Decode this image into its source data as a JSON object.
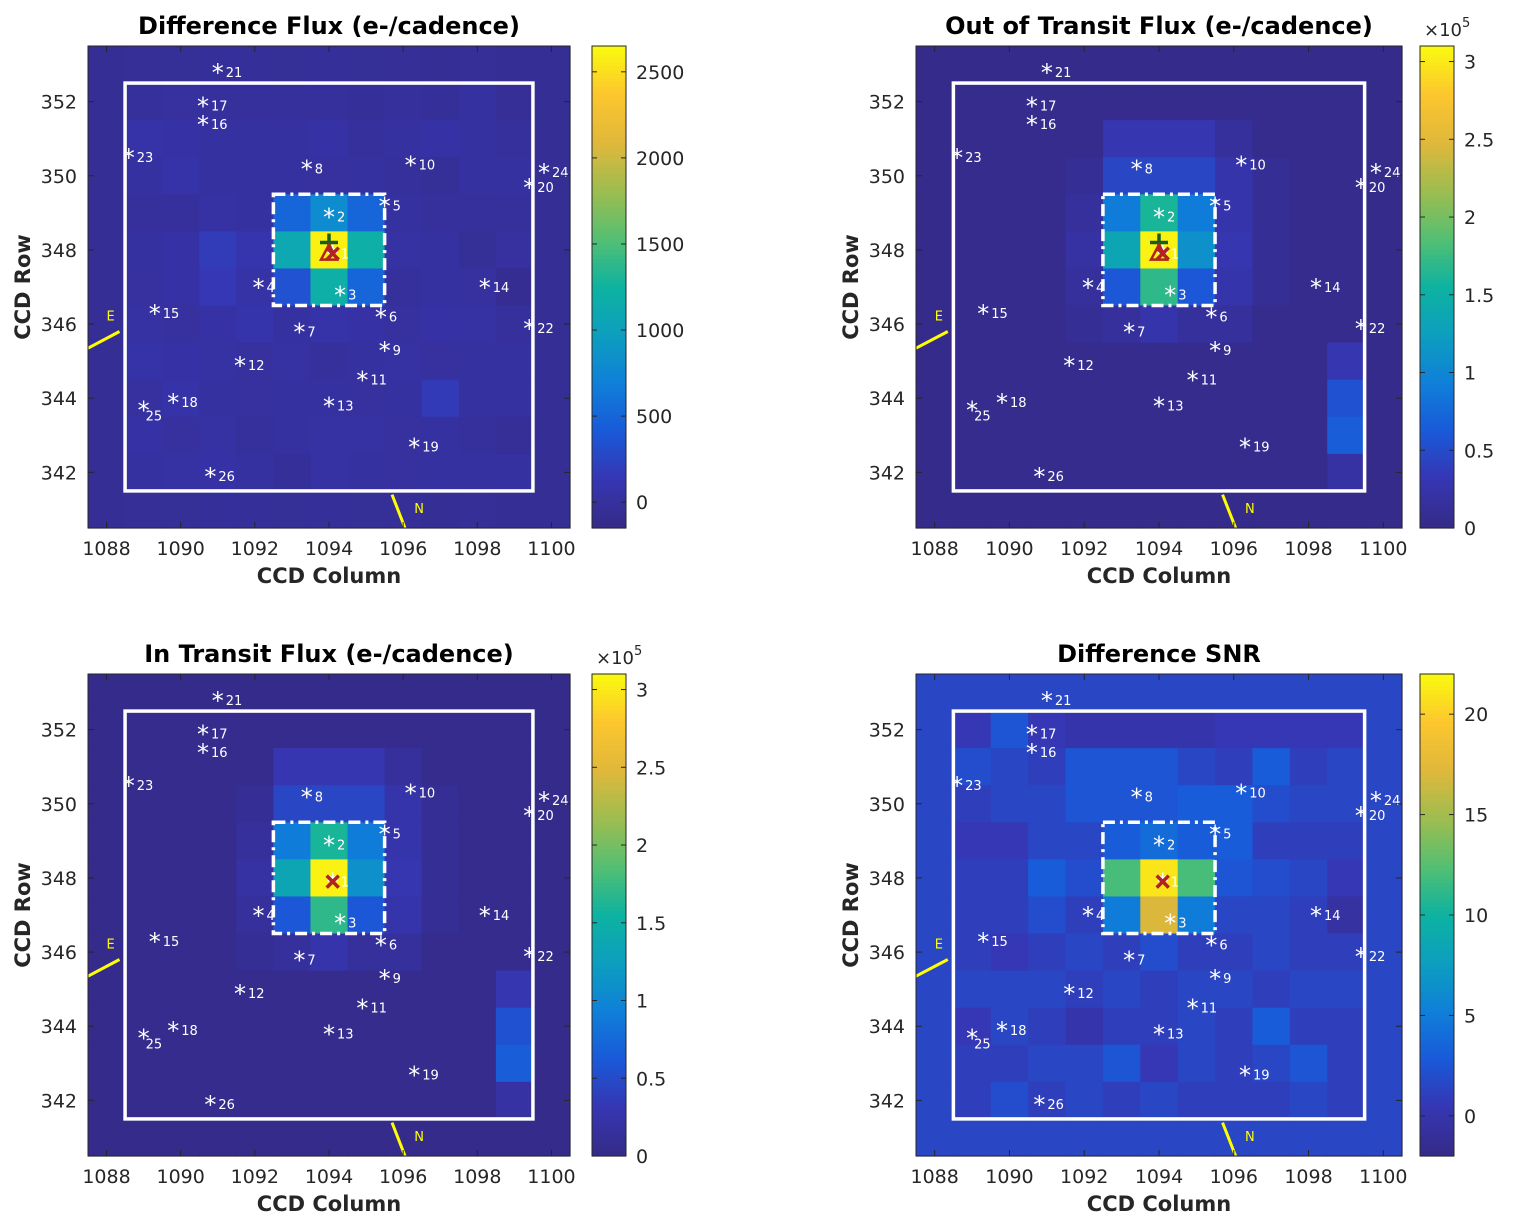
{
  "chart_data": [
    {
      "type": "heatmap",
      "title": "Difference Flux (e-/cadence)",
      "xlabel": "CCD Column",
      "ylabel": "CCD Row",
      "xlim": [
        1087.5,
        1100.5
      ],
      "ylim": [
        340.5,
        353.5
      ],
      "xticks": [
        1088,
        1090,
        1092,
        1094,
        1096,
        1098,
        1100
      ],
      "yticks": [
        342,
        344,
        346,
        348,
        350,
        352
      ],
      "clim": [
        -150,
        2650
      ],
      "colorbar_ticks": [
        0,
        500,
        1000,
        1500,
        2000,
        2500
      ],
      "colorbar_exponent": "",
      "pixels": [
        [
          -60,
          -50,
          -40,
          -30,
          -30,
          -40,
          -30,
          -40,
          -50,
          -60,
          -50,
          -60,
          -60
        ],
        [
          -60,
          -20,
          0,
          -10,
          -20,
          -10,
          -20,
          -30,
          -10,
          -30,
          20,
          -50,
          -60
        ],
        [
          -60,
          60,
          40,
          20,
          10,
          10,
          40,
          -10,
          10,
          40,
          10,
          -10,
          -60
        ],
        [
          -60,
          20,
          70,
          10,
          20,
          10,
          0,
          10,
          -20,
          -40,
          10,
          10,
          -60
        ],
        [
          -60,
          -10,
          -10,
          30,
          20,
          500,
          800,
          500,
          10,
          -10,
          -20,
          -10,
          -60
        ],
        [
          -60,
          20,
          40,
          170,
          100,
          1100,
          2600,
          1200,
          30,
          20,
          -40,
          0,
          -60
        ],
        [
          -60,
          0,
          40,
          140,
          50,
          350,
          1200,
          500,
          -10,
          20,
          0,
          -80,
          -60
        ],
        [
          -60,
          30,
          0,
          40,
          80,
          20,
          60,
          40,
          0,
          40,
          30,
          -20,
          -60
        ],
        [
          -60,
          60,
          40,
          30,
          0,
          30,
          -20,
          10,
          30,
          0,
          20,
          10,
          -60
        ],
        [
          -60,
          0,
          70,
          20,
          0,
          20,
          10,
          0,
          10,
          160,
          20,
          20,
          -60
        ],
        [
          -60,
          40,
          0,
          30,
          -20,
          10,
          30,
          30,
          0,
          20,
          -10,
          -50,
          -60
        ],
        [
          -60,
          10,
          30,
          40,
          20,
          -30,
          30,
          10,
          0,
          10,
          20,
          10,
          -60
        ],
        [
          -60,
          -50,
          -40,
          -30,
          -30,
          -40,
          -30,
          -40,
          -50,
          -60,
          -50,
          -60,
          -60
        ]
      ],
      "aperture": {
        "col": [
          1092.5,
          1095.5
        ],
        "row": [
          346.5,
          349.5
        ]
      },
      "mask": {
        "col": [
          1088.5,
          1099.5
        ],
        "row": [
          341.5,
          352.5
        ]
      },
      "centroid_markers": [
        {
          "symbol": "+",
          "col": 1094.0,
          "row": 348.2
        },
        {
          "symbol": "×",
          "col": 1094.1,
          "row": 347.9
        },
        {
          "symbol": "△",
          "col": 1094.0,
          "row": 347.9
        }
      ]
    },
    {
      "type": "heatmap",
      "title": "Out of Transit Flux (e-/cadence)",
      "xlabel": "CCD Column",
      "ylabel": "CCD Row",
      "xlim": [
        1087.5,
        1100.5
      ],
      "ylim": [
        340.5,
        353.5
      ],
      "xticks": [
        1088,
        1090,
        1092,
        1094,
        1096,
        1098,
        1100
      ],
      "yticks": [
        342,
        344,
        346,
        348,
        350,
        352
      ],
      "clim": [
        0,
        3.1
      ],
      "colorbar_ticks": [
        0,
        0.5,
        1,
        1.5,
        2,
        2.5,
        3
      ],
      "colorbar_exponent": "×10^5",
      "pixels": [
        [
          0.02,
          0.02,
          0.02,
          0.02,
          0.02,
          0.02,
          0.02,
          0.02,
          0.02,
          0.02,
          0.02,
          0.02,
          0.02
        ],
        [
          0.02,
          0.05,
          0.05,
          0.05,
          0.05,
          0.05,
          0.05,
          0.05,
          0.05,
          0.05,
          0.05,
          0.05,
          0.02
        ],
        [
          0.02,
          0.05,
          0.05,
          0.05,
          0.05,
          0.3,
          0.3,
          0.3,
          0.15,
          0.05,
          0.05,
          0.05,
          0.02
        ],
        [
          0.02,
          0.05,
          0.05,
          0.05,
          0.1,
          0.45,
          0.45,
          0.45,
          0.25,
          0.1,
          0.05,
          0.05,
          0.02
        ],
        [
          0.02,
          0.05,
          0.05,
          0.05,
          0.15,
          0.9,
          1.6,
          0.9,
          0.25,
          0.1,
          0.05,
          0.05,
          0.02
        ],
        [
          0.02,
          0.05,
          0.05,
          0.05,
          0.2,
          1.35,
          3.05,
          1.1,
          0.3,
          0.1,
          0.05,
          0.05,
          0.02
        ],
        [
          0.02,
          0.05,
          0.05,
          0.05,
          0.15,
          0.6,
          1.7,
          0.6,
          0.25,
          0.1,
          0.05,
          0.05,
          0.02
        ],
        [
          0.02,
          0.05,
          0.05,
          0.05,
          0.1,
          0.15,
          0.25,
          0.15,
          0.15,
          0.05,
          0.05,
          0.05,
          0.02
        ],
        [
          0.02,
          0.05,
          0.05,
          0.05,
          0.05,
          0.05,
          0.05,
          0.05,
          0.05,
          0.05,
          0.05,
          0.3,
          0.02
        ],
        [
          0.02,
          0.05,
          0.05,
          0.05,
          0.05,
          0.05,
          0.05,
          0.05,
          0.05,
          0.05,
          0.05,
          0.55,
          0.02
        ],
        [
          0.02,
          0.05,
          0.05,
          0.05,
          0.05,
          0.05,
          0.05,
          0.05,
          0.05,
          0.05,
          0.05,
          0.65,
          0.02
        ],
        [
          0.02,
          0.05,
          0.05,
          0.05,
          0.05,
          0.05,
          0.05,
          0.05,
          0.05,
          0.05,
          0.05,
          0.2,
          0.02
        ],
        [
          0.02,
          0.02,
          0.02,
          0.02,
          0.02,
          0.02,
          0.02,
          0.02,
          0.02,
          0.02,
          0.02,
          0.02,
          0.02
        ]
      ],
      "aperture": {
        "col": [
          1092.5,
          1095.5
        ],
        "row": [
          346.5,
          349.5
        ]
      },
      "mask": {
        "col": [
          1088.5,
          1099.5
        ],
        "row": [
          341.5,
          352.5
        ]
      },
      "centroid_markers": [
        {
          "symbol": "+",
          "col": 1094.0,
          "row": 348.2
        },
        {
          "symbol": "×",
          "col": 1094.1,
          "row": 347.9
        },
        {
          "symbol": "△",
          "col": 1094.0,
          "row": 347.9
        }
      ]
    },
    {
      "type": "heatmap",
      "title": "In Transit Flux (e-/cadence)",
      "xlabel": "CCD Column",
      "ylabel": "CCD Row",
      "xlim": [
        1087.5,
        1100.5
      ],
      "ylim": [
        340.5,
        353.5
      ],
      "xticks": [
        1088,
        1090,
        1092,
        1094,
        1096,
        1098,
        1100
      ],
      "yticks": [
        342,
        344,
        346,
        348,
        350,
        352
      ],
      "clim": [
        0,
        3.1
      ],
      "colorbar_ticks": [
        0,
        0.5,
        1,
        1.5,
        2,
        2.5,
        3
      ],
      "colorbar_exponent": "×10^5",
      "pixels": [
        [
          0.02,
          0.02,
          0.02,
          0.02,
          0.02,
          0.02,
          0.02,
          0.02,
          0.02,
          0.02,
          0.02,
          0.02,
          0.02
        ],
        [
          0.02,
          0.05,
          0.05,
          0.05,
          0.05,
          0.05,
          0.05,
          0.05,
          0.05,
          0.05,
          0.05,
          0.05,
          0.02
        ],
        [
          0.02,
          0.05,
          0.05,
          0.05,
          0.05,
          0.3,
          0.3,
          0.3,
          0.15,
          0.05,
          0.05,
          0.05,
          0.02
        ],
        [
          0.02,
          0.05,
          0.05,
          0.05,
          0.1,
          0.45,
          0.45,
          0.45,
          0.25,
          0.1,
          0.05,
          0.05,
          0.02
        ],
        [
          0.02,
          0.05,
          0.05,
          0.05,
          0.15,
          0.9,
          1.6,
          0.9,
          0.25,
          0.1,
          0.05,
          0.05,
          0.02
        ],
        [
          0.02,
          0.05,
          0.05,
          0.05,
          0.2,
          1.35,
          3.05,
          1.1,
          0.3,
          0.1,
          0.05,
          0.05,
          0.02
        ],
        [
          0.02,
          0.05,
          0.05,
          0.05,
          0.15,
          0.6,
          1.7,
          0.6,
          0.25,
          0.1,
          0.05,
          0.05,
          0.02
        ],
        [
          0.02,
          0.05,
          0.05,
          0.05,
          0.1,
          0.15,
          0.25,
          0.15,
          0.15,
          0.05,
          0.05,
          0.05,
          0.02
        ],
        [
          0.02,
          0.05,
          0.05,
          0.05,
          0.05,
          0.05,
          0.05,
          0.05,
          0.05,
          0.05,
          0.05,
          0.3,
          0.02
        ],
        [
          0.02,
          0.05,
          0.05,
          0.05,
          0.05,
          0.05,
          0.05,
          0.05,
          0.05,
          0.05,
          0.05,
          0.55,
          0.02
        ],
        [
          0.02,
          0.05,
          0.05,
          0.05,
          0.05,
          0.05,
          0.05,
          0.05,
          0.05,
          0.05,
          0.05,
          0.65,
          0.02
        ],
        [
          0.02,
          0.05,
          0.05,
          0.05,
          0.05,
          0.05,
          0.05,
          0.05,
          0.05,
          0.05,
          0.05,
          0.2,
          0.02
        ],
        [
          0.02,
          0.02,
          0.02,
          0.02,
          0.02,
          0.02,
          0.02,
          0.02,
          0.02,
          0.02,
          0.02,
          0.02,
          0.02
        ]
      ],
      "aperture": {
        "col": [
          1092.5,
          1095.5
        ],
        "row": [
          346.5,
          349.5
        ]
      },
      "mask": {
        "col": [
          1088.5,
          1099.5
        ],
        "row": [
          341.5,
          352.5
        ]
      },
      "centroid_markers": [
        {
          "symbol": "×",
          "col": 1094.1,
          "row": 347.9
        }
      ]
    },
    {
      "type": "heatmap",
      "title": "Difference SNR",
      "xlabel": "CCD Column",
      "ylabel": "CCD Row",
      "xlim": [
        1087.5,
        1100.5
      ],
      "ylim": [
        340.5,
        353.5
      ],
      "xticks": [
        1088,
        1090,
        1092,
        1094,
        1096,
        1098,
        1100
      ],
      "yticks": [
        342,
        344,
        346,
        348,
        350,
        352
      ],
      "clim": [
        -2,
        22
      ],
      "colorbar_ticks": [
        0,
        5,
        10,
        15,
        20
      ],
      "colorbar_exponent": "",
      "pixels": [
        [
          1.5,
          1.5,
          1.5,
          1.5,
          1.5,
          1.5,
          1.5,
          1.5,
          1.5,
          1.5,
          1.5,
          1.5,
          1.5
        ],
        [
          1.5,
          0.5,
          2.5,
          0.5,
          0,
          0,
          0,
          0,
          0.5,
          0.5,
          0.5,
          0.5,
          1.5
        ],
        [
          1.5,
          2,
          1.5,
          1,
          2.5,
          2.5,
          2.5,
          1.5,
          1,
          3,
          1,
          1.5,
          1.5
        ],
        [
          1.5,
          1,
          1.5,
          1.5,
          2.5,
          2.5,
          2.5,
          3,
          3,
          2,
          1.5,
          1.5,
          1.5
        ],
        [
          1.5,
          0.5,
          0.5,
          1.5,
          1.5,
          3,
          4,
          3,
          3,
          1,
          1,
          1,
          1.5
        ],
        [
          1.5,
          1,
          1,
          3,
          2,
          12,
          21,
          12,
          2.5,
          2,
          1.5,
          0.5,
          1.5
        ],
        [
          1.5,
          1,
          1,
          2,
          1,
          5,
          17,
          5,
          1.5,
          1.5,
          1,
          -0.5,
          1.5
        ],
        [
          1.5,
          1,
          0.5,
          1,
          1.5,
          1,
          2,
          1,
          1,
          1.5,
          1,
          1,
          1.5
        ],
        [
          1.5,
          1.5,
          1.5,
          1.5,
          1,
          1.5,
          1,
          1.5,
          1.5,
          1,
          1.5,
          1.5,
          1.5
        ],
        [
          1.5,
          0.5,
          1.5,
          1,
          0,
          1,
          1,
          1.5,
          1,
          3,
          1,
          1,
          1.5
        ],
        [
          1.5,
          1,
          1,
          1.5,
          1.5,
          2.5,
          0.5,
          1.5,
          1,
          1.5,
          2.5,
          1,
          1.5
        ],
        [
          1.5,
          1,
          2,
          1,
          1.5,
          1,
          1.5,
          1,
          1,
          1,
          1.5,
          1,
          1.5
        ],
        [
          1.5,
          1.5,
          1.5,
          1.5,
          1.5,
          1.5,
          1.5,
          1.5,
          1.5,
          1.5,
          1.5,
          1.5,
          1.5
        ]
      ],
      "aperture": {
        "col": [
          1092.5,
          1095.5
        ],
        "row": [
          346.5,
          349.5
        ]
      },
      "mask": {
        "col": [
          1088.5,
          1099.5
        ],
        "row": [
          341.5,
          352.5
        ]
      },
      "centroid_markers": [
        {
          "symbol": "×",
          "col": 1094.1,
          "row": 347.9
        }
      ]
    }
  ],
  "stars": [
    {
      "id": "1",
      "col": 1094.1,
      "row": 347.9
    },
    {
      "id": "2",
      "col": 1094.0,
      "row": 348.9
    },
    {
      "id": "3",
      "col": 1094.3,
      "row": 346.8
    },
    {
      "id": "4",
      "col": 1092.1,
      "row": 347.0
    },
    {
      "id": "5",
      "col": 1095.5,
      "row": 349.2
    },
    {
      "id": "6",
      "col": 1095.4,
      "row": 346.2
    },
    {
      "id": "7",
      "col": 1093.2,
      "row": 345.8
    },
    {
      "id": "8",
      "col": 1093.4,
      "row": 350.2
    },
    {
      "id": "9",
      "col": 1095.5,
      "row": 345.3
    },
    {
      "id": "10",
      "col": 1096.2,
      "row": 350.3
    },
    {
      "id": "11",
      "col": 1094.9,
      "row": 344.5
    },
    {
      "id": "12",
      "col": 1091.6,
      "row": 344.9
    },
    {
      "id": "13",
      "col": 1094.0,
      "row": 343.8
    },
    {
      "id": "14",
      "col": 1098.2,
      "row": 347.0
    },
    {
      "id": "15",
      "col": 1089.3,
      "row": 346.3
    },
    {
      "id": "16",
      "col": 1090.6,
      "row": 351.4
    },
    {
      "id": "17",
      "col": 1090.6,
      "row": 351.9
    },
    {
      "id": "18",
      "col": 1089.8,
      "row": 343.9
    },
    {
      "id": "19",
      "col": 1096.3,
      "row": 342.7
    },
    {
      "id": "20",
      "col": 1099.4,
      "row": 349.7
    },
    {
      "id": "21",
      "col": 1091.0,
      "row": 352.8
    },
    {
      "id": "22",
      "col": 1099.4,
      "row": 345.9
    },
    {
      "id": "23",
      "col": 1088.6,
      "row": 350.5
    },
    {
      "id": "24",
      "col": 1099.8,
      "row": 350.1
    },
    {
      "id": "25",
      "col": 1089.0,
      "row": 343.7
    },
    {
      "id": "26",
      "col": 1090.8,
      "row": 341.9
    }
  ],
  "compass": {
    "east_label": "E",
    "north_label": "N"
  },
  "colors": {
    "star": "#ffffff",
    "compass": "#ffff00",
    "centroid_plus": "#1a5e1a",
    "centroid_x": "#b22222",
    "centroid_triangle": "#b22222",
    "mask": "#ffffff"
  }
}
